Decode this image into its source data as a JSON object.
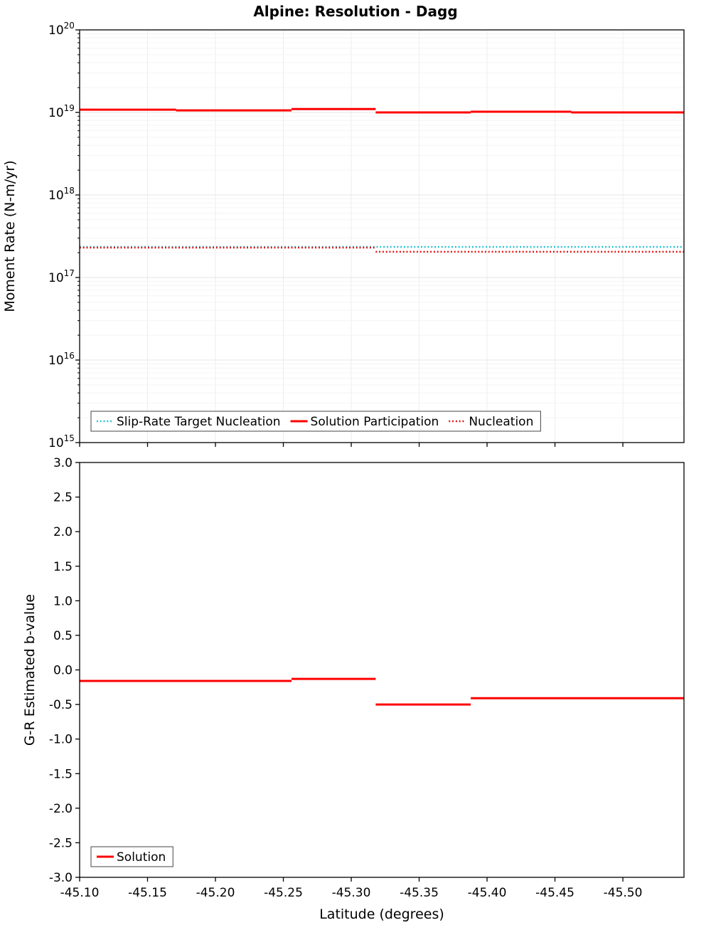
{
  "title": "Alpine: Resolution - Dagg",
  "colors": {
    "solution_red": "#ff0000",
    "nucleation_red": "#e60000",
    "target_cyan": "#17becf",
    "axis_black": "#000000",
    "grid_minor": "#f4f4f4",
    "grid_major": "#e6e6e6",
    "grid_vertical": "#ededed"
  },
  "chart_data": [
    {
      "type": "line",
      "title": "Alpine: Resolution - Dagg",
      "xlabel": "",
      "ylabel": "Moment Rate (N-m/yr)",
      "yscale": "log",
      "ylim": [
        1000000000000000.0,
        1e+20
      ],
      "ytick_exponents": [
        20,
        19,
        18,
        17,
        16,
        15
      ],
      "xlim": [
        -45.1,
        -45.545
      ],
      "xtick_values": [
        -45.1,
        -45.15,
        -45.2,
        -45.25,
        -45.3,
        -45.35,
        -45.4,
        -45.45,
        -45.5
      ],
      "xtick_labels": [
        "-45.10",
        "-45.15",
        "-45.20",
        "-45.25",
        "-45.30",
        "-45.35",
        "-45.40",
        "-45.45",
        "-45.50"
      ],
      "show_xtick_labels": false,
      "grid": true,
      "legend_position": "bottom-inside",
      "series": [
        {
          "name": "Slip-Rate Target Nucleation",
          "color": "#17becf",
          "style": "dotted",
          "width": 2.4,
          "segments": [
            [
              [
                -45.1,
                2.35e+17
              ],
              [
                -45.545,
                2.35e+17
              ]
            ]
          ]
        },
        {
          "name": "Solution Participation",
          "color": "#ff0000",
          "style": "solid",
          "width": 3,
          "segments": [
            [
              [
                -45.1,
                1.08e+19
              ],
              [
                -45.171,
                1.08e+19
              ]
            ],
            [
              [
                -45.171,
                1.06e+19
              ],
              [
                -45.256,
                1.06e+19
              ]
            ],
            [
              [
                -45.256,
                1.1e+19
              ],
              [
                -45.318,
                1.1e+19
              ]
            ],
            [
              [
                -45.318,
                1e+19
              ],
              [
                -45.388,
                1e+19
              ]
            ],
            [
              [
                -45.388,
                1.02e+19
              ],
              [
                -45.462,
                1.02e+19
              ]
            ],
            [
              [
                -45.462,
                1e+19
              ],
              [
                -45.545,
                1e+19
              ]
            ]
          ]
        },
        {
          "name": "Nucleation",
          "color": "#e60000",
          "style": "dotted",
          "width": 2.4,
          "segments": [
            [
              [
                -45.1,
                2.3e+17
              ],
              [
                -45.318,
                2.3e+17
              ]
            ],
            [
              [
                -45.318,
                2.05e+17
              ],
              [
                -45.545,
                2.05e+17
              ]
            ]
          ]
        }
      ]
    },
    {
      "type": "line",
      "title": "",
      "xlabel": "Latitude (degrees)",
      "ylabel": "G-R Estimated b-value",
      "yscale": "linear",
      "ylim": [
        -3.0,
        3.0
      ],
      "ytick_values": [
        3.0,
        2.5,
        2.0,
        1.5,
        1.0,
        0.5,
        0.0,
        -0.5,
        -1.0,
        -1.5,
        -2.0,
        -2.5,
        -3.0
      ],
      "ytick_labels": [
        "3.0",
        "2.5",
        "2.0",
        "1.5",
        "1.0",
        "0.5",
        "0.0",
        "-0.5",
        "-1.0",
        "-1.5",
        "-2.0",
        "-2.5",
        "-3.0"
      ],
      "xlim": [
        -45.1,
        -45.545
      ],
      "xtick_values": [
        -45.1,
        -45.15,
        -45.2,
        -45.25,
        -45.3,
        -45.35,
        -45.4,
        -45.45,
        -45.5
      ],
      "xtick_labels": [
        "-45.10",
        "-45.15",
        "-45.20",
        "-45.25",
        "-45.30",
        "-45.35",
        "-45.40",
        "-45.45",
        "-45.50"
      ],
      "show_xtick_labels": true,
      "grid": false,
      "legend_position": "bottom-left-inside",
      "series": [
        {
          "name": "Solution",
          "color": "#ff0000",
          "style": "solid",
          "width": 3,
          "segments": [
            [
              [
                -45.1,
                -0.16
              ],
              [
                -45.256,
                -0.16
              ]
            ],
            [
              [
                -45.256,
                -0.13
              ],
              [
                -45.318,
                -0.13
              ]
            ],
            [
              [
                -45.318,
                -0.5
              ],
              [
                -45.388,
                -0.5
              ]
            ],
            [
              [
                -45.388,
                -0.41
              ],
              [
                -45.545,
                -0.41
              ]
            ]
          ]
        }
      ]
    }
  ]
}
